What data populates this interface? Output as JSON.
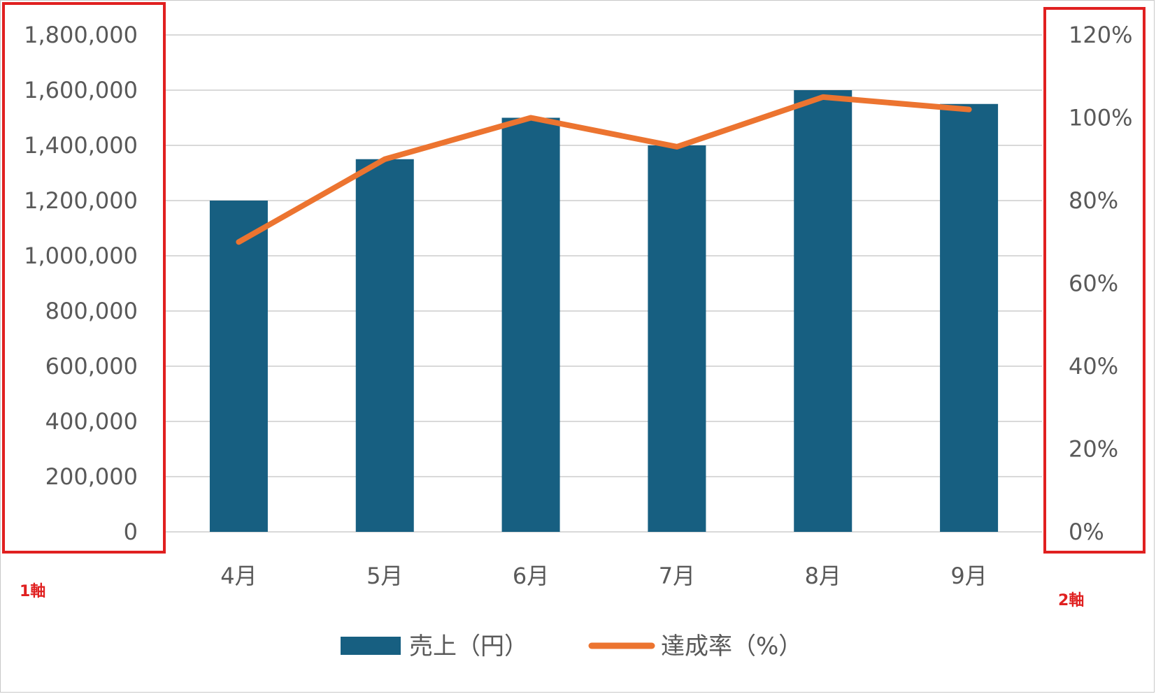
{
  "chart_data": {
    "type": "bar",
    "categories": [
      "4月",
      "5月",
      "6月",
      "7月",
      "8月",
      "9月"
    ],
    "series": [
      {
        "name": "売上（円）",
        "type": "bar",
        "axis": "primary",
        "values": [
          1200000,
          1350000,
          1500000,
          1400000,
          1600000,
          1550000
        ]
      },
      {
        "name": "達成率（%）",
        "type": "line",
        "axis": "secondary",
        "values": [
          0.7,
          0.9,
          1.0,
          0.93,
          1.05,
          1.02
        ]
      }
    ],
    "y_primary": {
      "lim": [
        0,
        1800000
      ],
      "ticks": [
        0,
        200000,
        400000,
        600000,
        800000,
        1000000,
        1200000,
        1400000,
        1600000,
        1800000
      ],
      "tick_labels": [
        "0",
        "200,000",
        "400,000",
        "600,000",
        "800,000",
        "1,000,000",
        "1,200,000",
        "1,400,000",
        "1,600,000",
        "1,800,000"
      ]
    },
    "y_secondary": {
      "lim": [
        0,
        1.2
      ],
      "ticks": [
        0,
        0.2,
        0.4,
        0.6,
        0.8,
        1.0,
        1.2
      ],
      "tick_labels": [
        "0%",
        "20%",
        "40%",
        "60%",
        "80%",
        "100%",
        "120%"
      ]
    },
    "grid": true,
    "legend": "bottom",
    "colors": {
      "bar": "#175f81",
      "line": "#ec7430",
      "grid": "#d9d9d9",
      "annotation": "#e02020"
    }
  },
  "annotations": {
    "primary_axis_label": "1軸",
    "secondary_axis_label": "2軸"
  }
}
